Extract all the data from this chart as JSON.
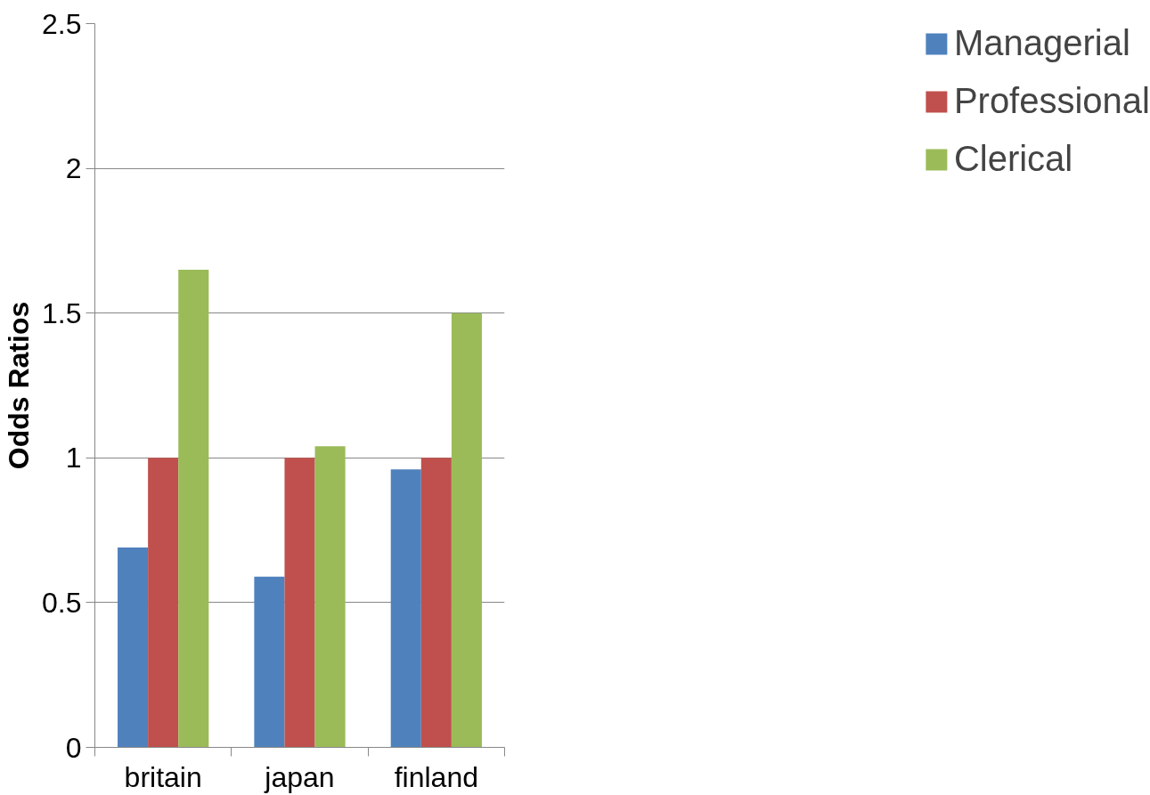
{
  "chart_data": {
    "type": "bar",
    "ylabel": "Odds Ratios",
    "categories": [
      "britain",
      "japan",
      "finland"
    ],
    "series": [
      {
        "name": "Managerial",
        "color": "#4f81bd",
        "values": [
          0.69,
          0.59,
          0.96
        ]
      },
      {
        "name": "Professional",
        "color": "#c0504d",
        "values": [
          1,
          1,
          1
        ]
      },
      {
        "name": "Clerical",
        "color": "#9bbb59",
        "values": [
          1.65,
          1.04,
          1.5
        ]
      }
    ],
    "ylim": [
      0,
      2.5
    ],
    "yticks": [
      0,
      0.5,
      1,
      1.5,
      2,
      2.5
    ],
    "grid": "y",
    "legend": "right"
  }
}
